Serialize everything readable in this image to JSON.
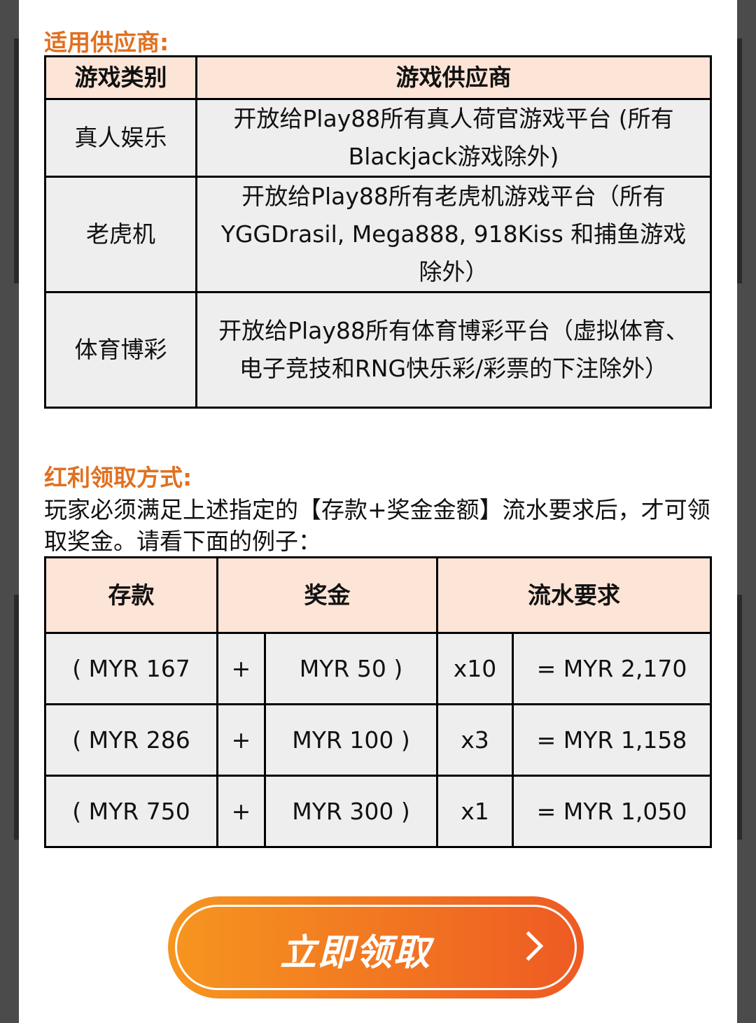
{
  "providers": {
    "heading": "适用供应商:",
    "headers": [
      "游戏类别",
      "游戏供应商"
    ],
    "rows": [
      {
        "category": "真人娱乐",
        "providers": "开放给Play88所有真人荷官游戏平台 (所有Blackjack游戏除外)"
      },
      {
        "category": "老虎机",
        "providers": "开放给Play88所有老虎机游戏平台（所有YGGDrasil, Mega888, 918Kiss 和捕鱼游戏除外）"
      },
      {
        "category": "体育博彩",
        "providers": "开放给Play88所有体育博彩平台（虚拟体育、电子竞技和RNG快乐彩/彩票的下注除外）"
      }
    ]
  },
  "claim": {
    "heading": "红利领取方式:",
    "description": "玩家必须满足上述指定的【存款+奖金金额】流水要求后，才可领取奖金。请看下面的例子：",
    "headers": [
      "存款",
      "奖金",
      "流水要求"
    ],
    "rows": [
      {
        "deposit": "( MYR 167",
        "plus": "+",
        "bonus": "MYR 50 )",
        "mult": "x10",
        "total": "= MYR 2,170"
      },
      {
        "deposit": "( MYR 286",
        "plus": "+",
        "bonus": "MYR 100 )",
        "mult": "x3",
        "total": "= MYR 1,158"
      },
      {
        "deposit": "( MYR 750",
        "plus": "+",
        "bonus": "MYR 300 )",
        "mult": "x1",
        "total": "= MYR 1,050"
      }
    ]
  },
  "button": {
    "label": "立即领取",
    "icon": "chevron-right-icon"
  },
  "colors": {
    "accent": "#e07020",
    "header_bg": "#fce4d6",
    "cell_bg": "#eeeeee"
  }
}
